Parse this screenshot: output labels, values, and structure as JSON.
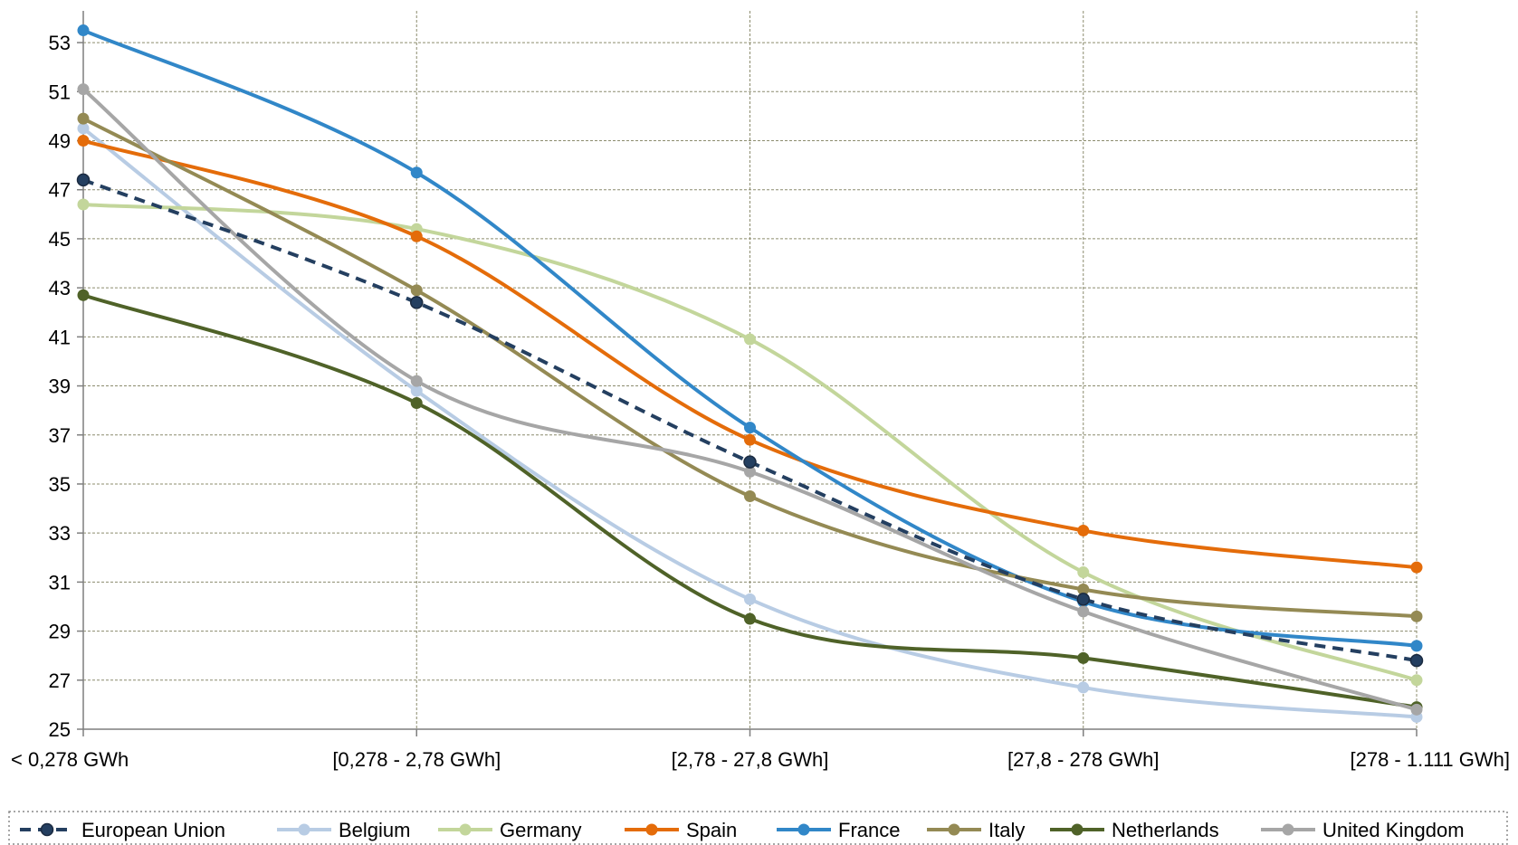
{
  "chart_data": {
    "type": "line",
    "categories": [
      "< 0,278 GWh",
      "[0,278 - 2,78 GWh]",
      "[2,78 - 27,8 GWh]",
      "[27,8 - 278 GWh]",
      "[278 - 1.111 GWh]"
    ],
    "ylim": [
      25,
      54
    ],
    "yticks": [
      25,
      27,
      29,
      31,
      33,
      35,
      37,
      39,
      41,
      43,
      45,
      47,
      49,
      51,
      53
    ],
    "grid": true,
    "legend": "bottom",
    "series": [
      {
        "name": "European Union",
        "color": "#243f60",
        "dashed": true,
        "values": [
          47.4,
          42.4,
          35.9,
          30.3,
          27.8
        ]
      },
      {
        "name": "Belgium",
        "color": "#b8cce4",
        "dashed": false,
        "values": [
          49.5,
          38.8,
          30.3,
          26.7,
          25.5
        ]
      },
      {
        "name": "Germany",
        "color": "#c3d69b",
        "dashed": false,
        "values": [
          46.4,
          45.4,
          40.9,
          31.4,
          27.0
        ]
      },
      {
        "name": "Spain",
        "color": "#e46c0a",
        "dashed": false,
        "values": [
          49.0,
          45.1,
          36.8,
          33.1,
          31.6
        ]
      },
      {
        "name": "France",
        "color": "#3187c8",
        "dashed": false,
        "values": [
          53.5,
          47.7,
          37.3,
          30.2,
          28.4
        ]
      },
      {
        "name": "Italy",
        "color": "#948a54",
        "dashed": false,
        "values": [
          49.9,
          42.9,
          34.5,
          30.7,
          29.6
        ]
      },
      {
        "name": "Netherlands",
        "color": "#4f6228",
        "dashed": false,
        "values": [
          42.7,
          38.3,
          29.5,
          27.9,
          25.9
        ]
      },
      {
        "name": "United Kingdom",
        "color": "#a6a6a6",
        "dashed": false,
        "values": [
          51.1,
          39.2,
          35.5,
          29.8,
          25.8
        ]
      }
    ]
  }
}
